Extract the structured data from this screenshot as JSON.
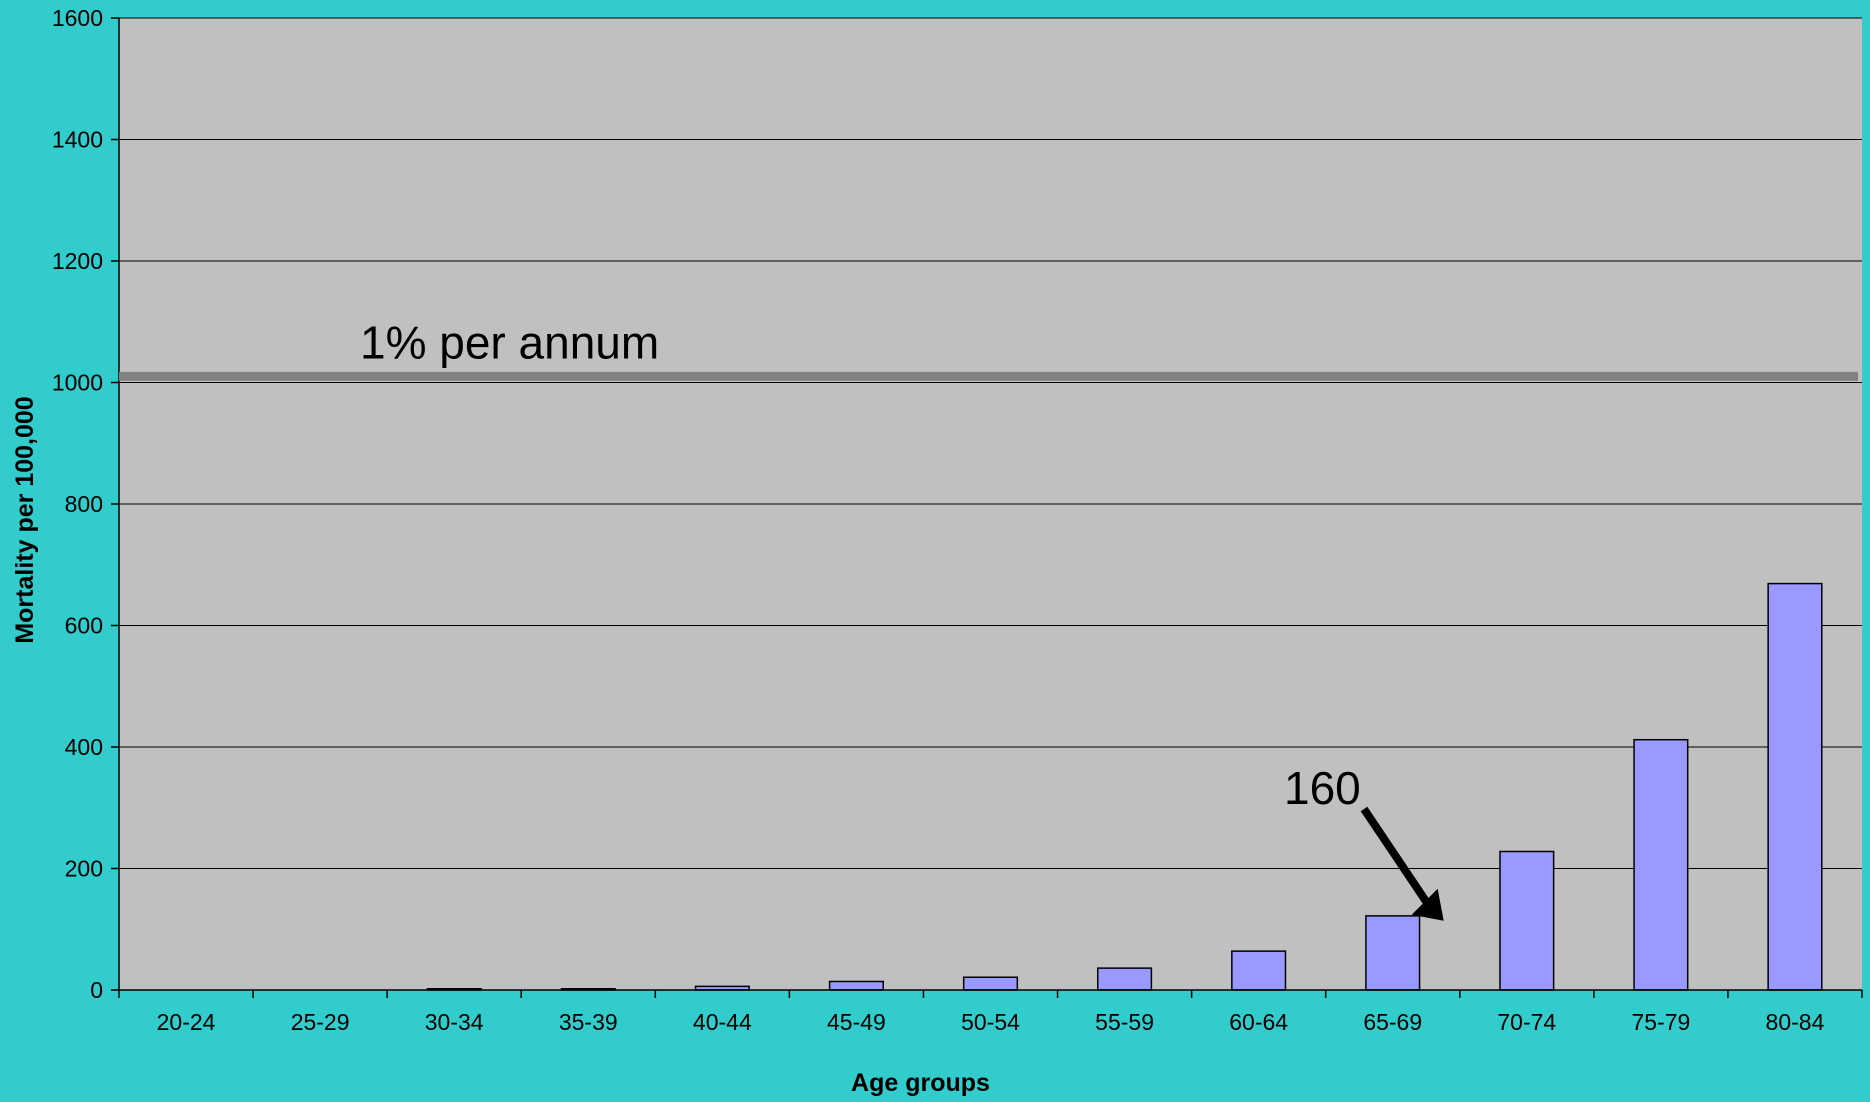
{
  "chart_data": {
    "type": "bar",
    "xlabel": "Age groups",
    "ylabel": "Mortality per 100,000",
    "categories": [
      "20-24",
      "25-29",
      "30-34",
      "35-39",
      "40-44",
      "45-49",
      "50-54",
      "55-59",
      "60-64",
      "65-69",
      "70-74",
      "75-79",
      "80-84"
    ],
    "values": [
      0,
      0,
      2,
      2,
      6,
      14,
      21,
      36,
      64,
      122,
      228,
      412,
      669
    ],
    "ylim": [
      0,
      1600
    ],
    "yticks": [
      0,
      200,
      400,
      600,
      800,
      1000,
      1200,
      1400,
      1600
    ],
    "grid": true,
    "reference_line": {
      "value": 1010,
      "label": "1% per annum"
    },
    "annotation": {
      "text": "160",
      "points_to_value": 160
    },
    "colors": {
      "background": "#33CCCC",
      "plot_area": "#C0C0C0",
      "bar_fill": "#9999FF",
      "bar_stroke": "#000000",
      "reference_line": "#808080"
    }
  }
}
